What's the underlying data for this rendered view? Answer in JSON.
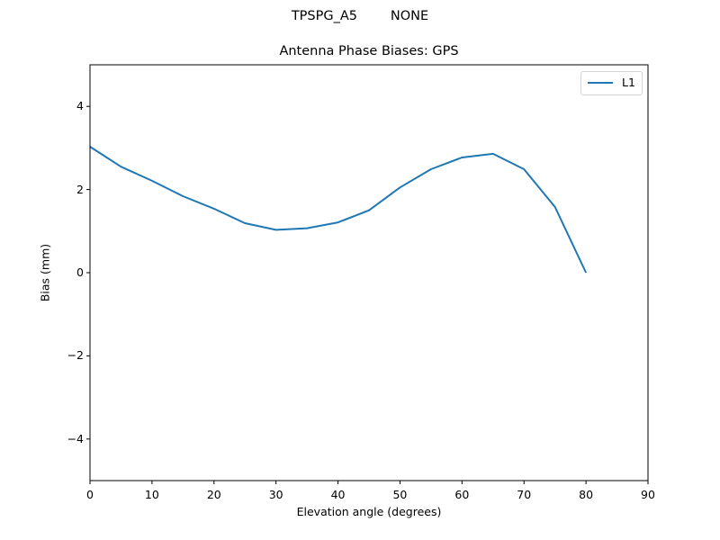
{
  "suptitle": "TPSPG_A5        NONE",
  "chart_data": {
    "type": "line",
    "title": "Antenna Phase Biases: GPS",
    "suptitle": "TPSPG_A5        NONE",
    "xlabel": "Elevation angle (degrees)",
    "ylabel": "Bias (mm)",
    "xlim": [
      0,
      90
    ],
    "ylim": [
      -5,
      5
    ],
    "xticks": [
      0,
      10,
      20,
      30,
      40,
      50,
      60,
      70,
      80,
      90
    ],
    "yticks": [
      -4,
      -2,
      0,
      2,
      4
    ],
    "ytick_labels": [
      "−4",
      "−2",
      "0",
      "2",
      "4"
    ],
    "grid": false,
    "legend_position": "upper right",
    "x": [
      0,
      5,
      10,
      15,
      20,
      25,
      30,
      35,
      40,
      45,
      50,
      55,
      60,
      65,
      70,
      75,
      80
    ],
    "series": [
      {
        "name": "L1",
        "color": "#1f77b4",
        "values": [
          3.03,
          2.55,
          2.21,
          1.84,
          1.54,
          1.19,
          1.03,
          1.07,
          1.21,
          1.5,
          2.05,
          2.49,
          2.77,
          2.86,
          2.49,
          1.58,
          0.0
        ]
      }
    ]
  }
}
